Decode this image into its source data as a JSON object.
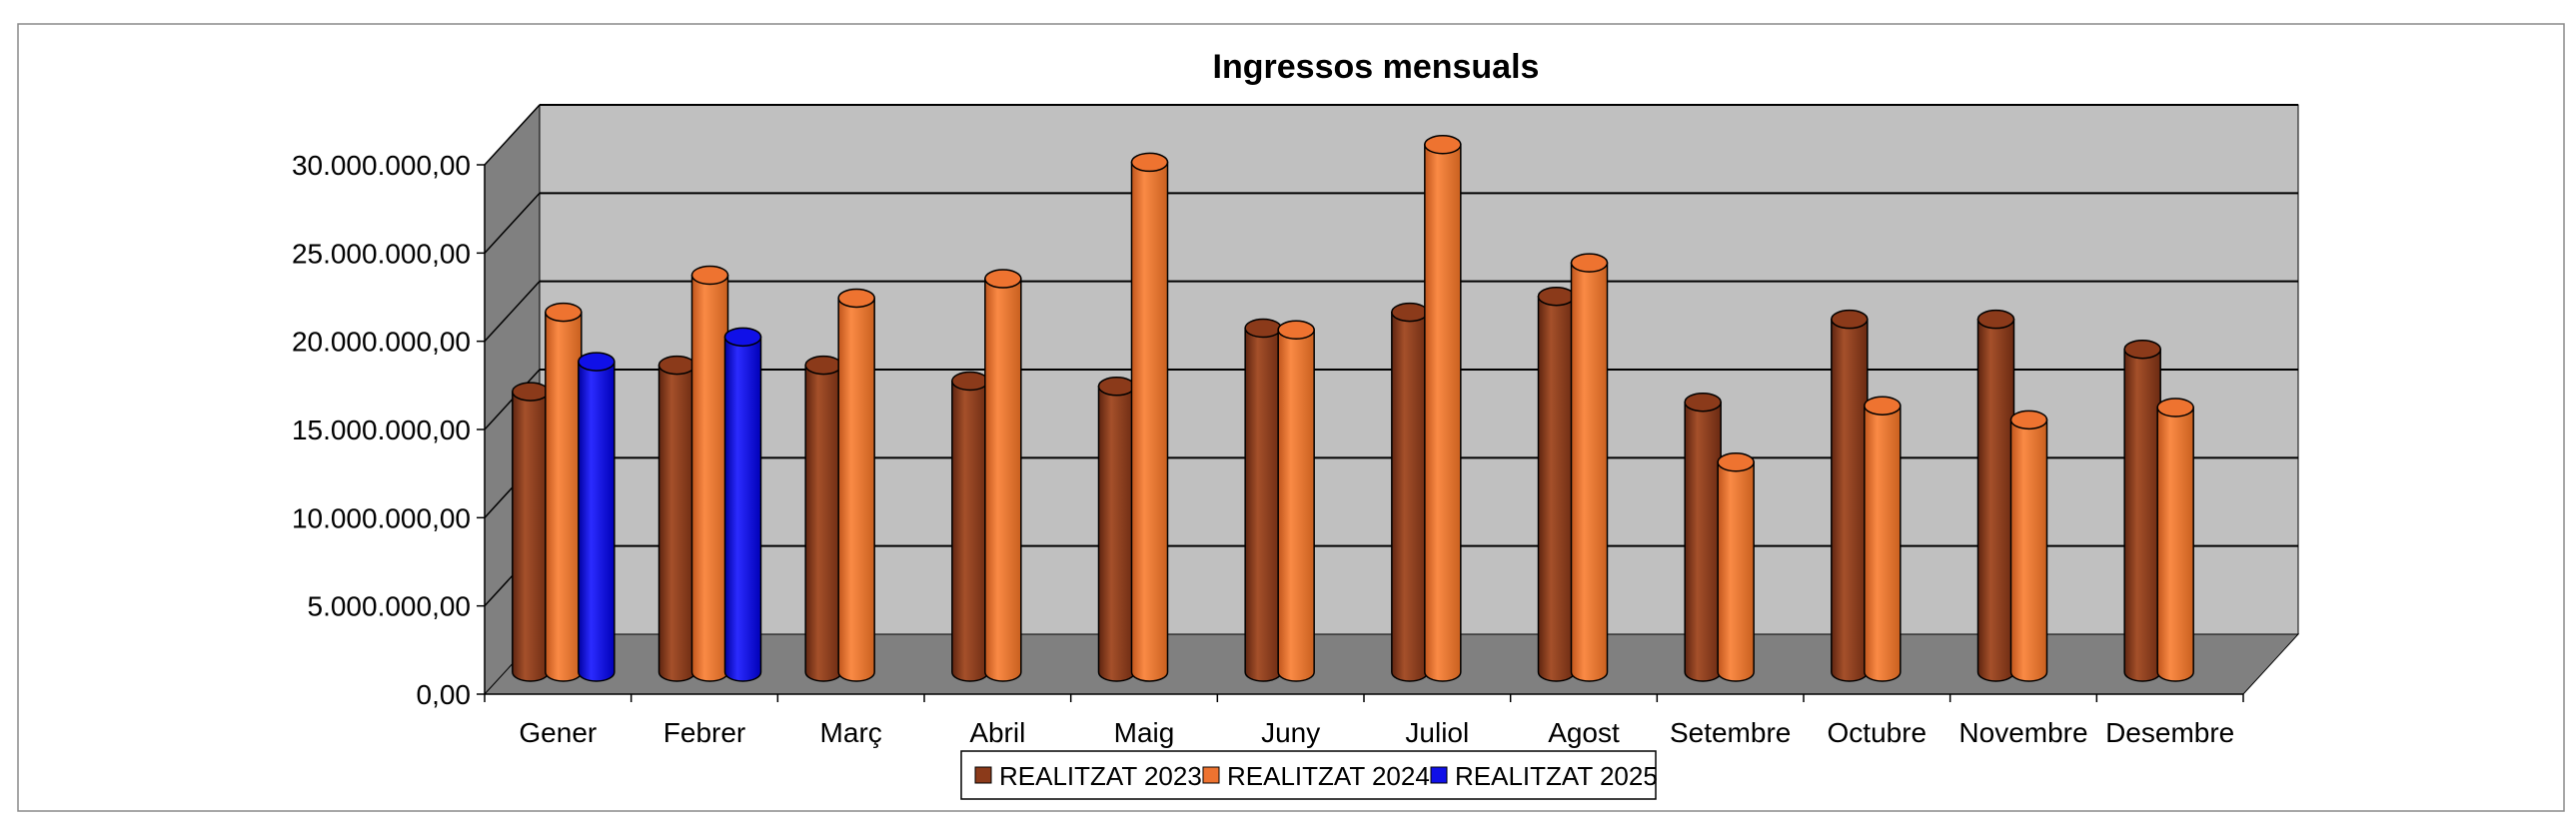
{
  "chart_data": {
    "type": "bar",
    "title": "Ingressos mensuals",
    "xlabel": "",
    "ylabel": "",
    "ylim": [
      0,
      30000000
    ],
    "y_ticks": [
      "0,00",
      "5.000.000,00",
      "10.000.000,00",
      "15.000.000,00",
      "20.000.000,00",
      "25.000.000,00",
      "30.000.000,00"
    ],
    "grid": true,
    "legend_position": "bottom",
    "categories": [
      "Gener",
      "Febrer",
      "Març",
      "Abril",
      "Maig",
      "Juny",
      "Juliol",
      "Agost",
      "Setembre",
      "Octubre",
      "Novembre",
      "Desembre"
    ],
    "series": [
      {
        "name": "REALITZAT 2023",
        "color": "#8B3A1A",
        "values": [
          15900000,
          17400000,
          17400000,
          16500000,
          16200000,
          19500000,
          20400000,
          21300000,
          15300000,
          20000000,
          20000000,
          18300000
        ]
      },
      {
        "name": "REALITZAT 2024",
        "color": "#EE7330",
        "values": [
          20400000,
          22500000,
          21200000,
          22300000,
          28900000,
          19400000,
          29900000,
          23200000,
          11900000,
          15100000,
          14300000,
          15000000
        ]
      },
      {
        "name": "REALITZAT 2025",
        "color": "#1010E8",
        "values": [
          17600000,
          19000000,
          null,
          null,
          null,
          null,
          null,
          null,
          null,
          null,
          null,
          null
        ]
      }
    ]
  }
}
